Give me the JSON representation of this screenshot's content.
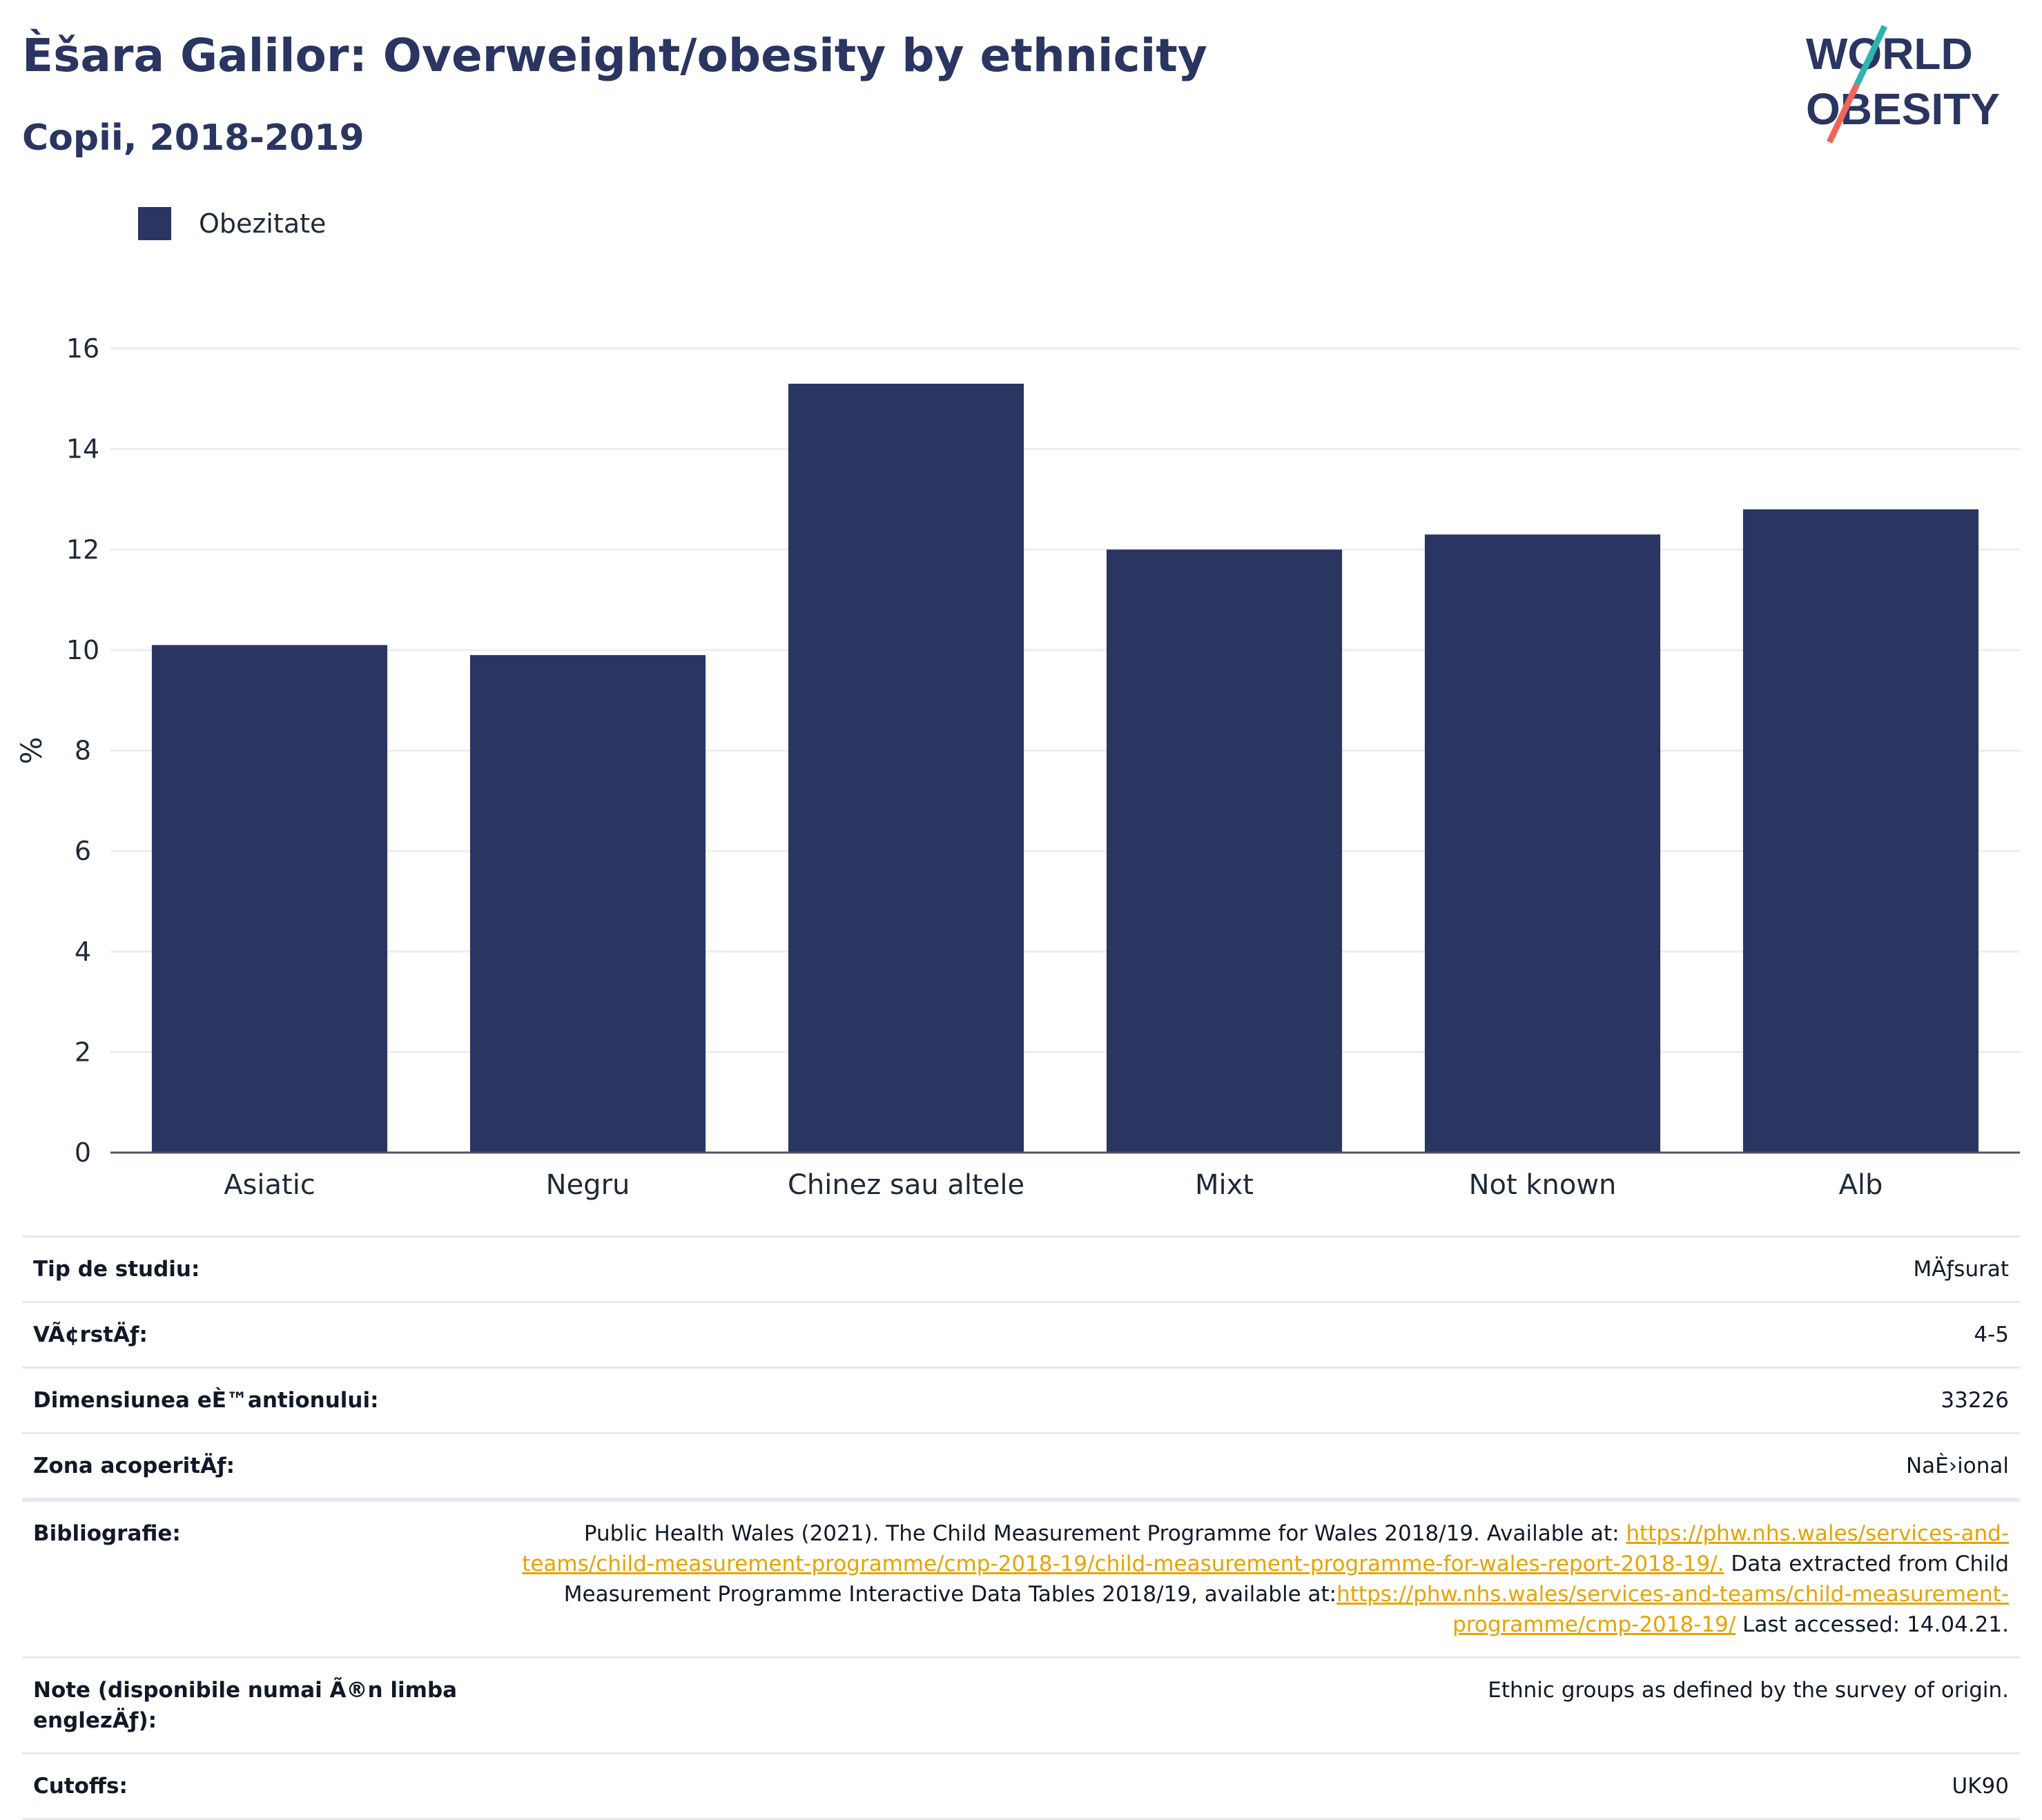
{
  "header": {
    "title": "Èšara Galilor: Overweight/obesity by ethnicity",
    "subtitle": "Copii, 2018-2019"
  },
  "logo": {
    "line1": "WORLD",
    "line2": "OBESITY",
    "accent_colors": [
      "#2bb5b0",
      "#f0655a"
    ]
  },
  "chart_data": {
    "type": "bar",
    "categories": [
      "Asiatic",
      "Negru",
      "Chinez sau altele",
      "Mixt",
      "Not known",
      "Alb"
    ],
    "series": [
      {
        "name": "Obezitate",
        "values": [
          10.1,
          9.9,
          15.3,
          12.0,
          12.3,
          12.8
        ],
        "color": "#2a3561"
      }
    ],
    "ylabel": "%",
    "ylim": [
      0,
      16
    ],
    "yticks": [
      0,
      2,
      4,
      6,
      8,
      10,
      12,
      14,
      16
    ],
    "grid": true,
    "legend_position": "top-left"
  },
  "meta": [
    {
      "key": "Tip de studiu:",
      "value": "MÄƒsurat"
    },
    {
      "key": "VÃ¢rstÄƒ:",
      "value": "4-5"
    },
    {
      "key": "Dimensiunea eÈ™antionului:",
      "value": "33226"
    },
    {
      "key": "Zona acoperitÄƒ:",
      "value": "NaÈ›ional"
    }
  ],
  "bibliography": {
    "key": "Bibliografie:",
    "text1": "Public Health Wales (2021). The Child Measurement Programme for Wales 2018/19. Available at: ",
    "link1": "https://phw.nhs.wales/services-and-teams/child-measurement-programme/cmp-2018-19/child-measurement-programme-for-wales-report-2018-19/.",
    "text2": " Data extracted from Child Measurement Programme Interactive Data Tables 2018/19, available at:",
    "link2": "https://phw.nhs.wales/services-and-teams/child-measurement-programme/cmp-2018-19/",
    "text3": " Last accessed: 14.04.21."
  },
  "notes": {
    "key": "Note (disponibile numai Ã®n limba englezÄƒ):",
    "value": "Ethnic groups as defined by the survey of origin."
  },
  "cutoffs": {
    "key": "Cutoffs:",
    "value": "UK90"
  }
}
